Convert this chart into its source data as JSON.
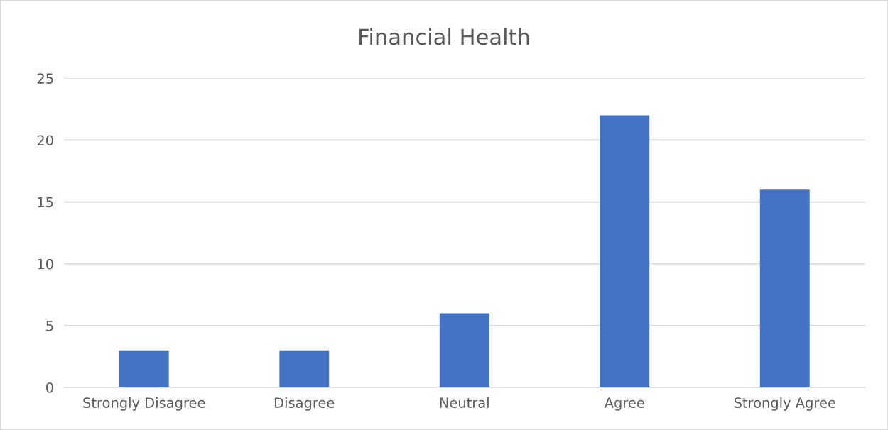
{
  "chart_data": {
    "type": "bar",
    "title": "Financial Health",
    "categories": [
      "Strongly Disagree",
      "Disagree",
      "Neutral",
      "Agree",
      "Strongly Agree"
    ],
    "values": [
      3,
      3,
      6,
      22,
      16
    ],
    "color": "#4472c4",
    "ylim": [
      0,
      25
    ],
    "yticks": [
      0,
      5,
      10,
      15,
      20,
      25
    ],
    "grid": "y",
    "legend": false
  }
}
